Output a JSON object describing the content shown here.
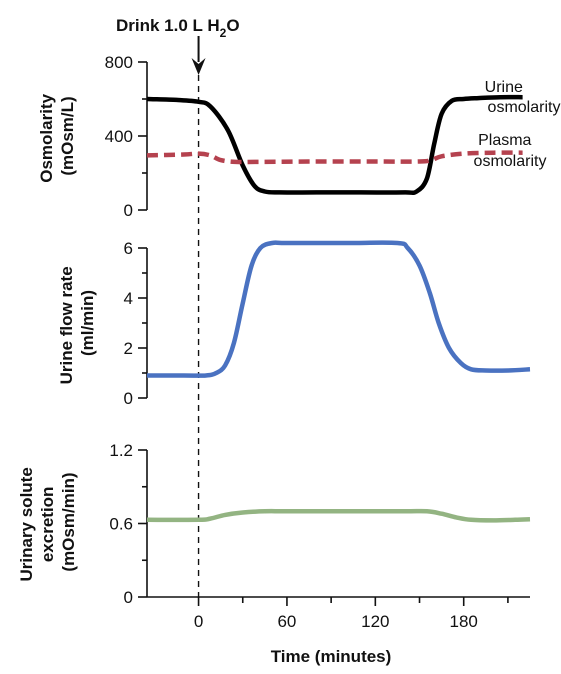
{
  "annotation": {
    "drink_label_main": "Drink 1.0 L H",
    "drink_label_sub": "2",
    "drink_label_end": "O",
    "event_x": 0
  },
  "x_axis": {
    "title": "Time (minutes)",
    "range": [
      -35,
      225
    ],
    "ticks": [
      0,
      60,
      120,
      180
    ],
    "minor_ticks": [
      30,
      90,
      150,
      210
    ]
  },
  "colors": {
    "urine_osmolarity": "#000000",
    "plasma_osmolarity": "#b5424f",
    "urine_flow": "#4a72c1",
    "solute_excretion": "#93b482",
    "axis": "#111111"
  },
  "chart_data": [
    {
      "type": "line",
      "panel": "osmolarity",
      "ylabel_line1": "Osmolarity",
      "ylabel_line2": "(mOsm/L)",
      "ylim": [
        0,
        800
      ],
      "yticks": [
        0,
        400,
        800
      ],
      "series": [
        {
          "name": "Urine osmolarity",
          "legend_line1": "Urine",
          "legend_line2": "osmolarity",
          "style": "solid",
          "x": [
            -35,
            -15,
            0,
            8,
            20,
            30,
            38,
            45,
            55,
            80,
            110,
            140,
            148,
            155,
            160,
            165,
            172,
            180,
            190,
            205,
            220
          ],
          "y": [
            600,
            595,
            585,
            560,
            430,
            240,
            130,
            100,
            95,
            95,
            95,
            95,
            100,
            170,
            360,
            520,
            590,
            600,
            605,
            610,
            610
          ]
        },
        {
          "name": "Plasma osmolarity",
          "legend_line1": "Plasma",
          "legend_line2": "osmolarity",
          "style": "dashed",
          "x": [
            -35,
            -10,
            0,
            8,
            15,
            25,
            40,
            80,
            120,
            150,
            158,
            165,
            180,
            200,
            220
          ],
          "y": [
            295,
            300,
            305,
            295,
            270,
            260,
            260,
            262,
            262,
            262,
            270,
            290,
            305,
            310,
            310
          ]
        }
      ]
    },
    {
      "type": "line",
      "panel": "urine_flow",
      "ylabel_line1": "Urine flow rate",
      "ylabel_line2": "(ml/min)",
      "ylim": [
        0,
        6
      ],
      "yticks": [
        0,
        2,
        4,
        6
      ],
      "series": [
        {
          "name": "Urine flow rate",
          "style": "solid",
          "x": [
            -35,
            -10,
            5,
            12,
            18,
            24,
            30,
            36,
            42,
            50,
            60,
            100,
            135,
            142,
            150,
            157,
            163,
            170,
            178,
            185,
            195,
            210,
            225
          ],
          "y": [
            0.9,
            0.9,
            0.9,
            1.0,
            1.3,
            2.2,
            3.8,
            5.3,
            6.0,
            6.2,
            6.2,
            6.2,
            6.2,
            6.0,
            5.3,
            4.2,
            3.0,
            2.0,
            1.4,
            1.15,
            1.1,
            1.1,
            1.15
          ]
        }
      ]
    },
    {
      "type": "line",
      "panel": "solute_excretion",
      "ylabel_line1": "Urinary solute",
      "ylabel_line2": "excretion",
      "ylabel_line3": "(mOsm/min)",
      "ylim": [
        0,
        1.2
      ],
      "yticks": [
        0,
        0.6,
        1.2
      ],
      "series": [
        {
          "name": "Urinary solute excretion",
          "style": "solid",
          "x": [
            -35,
            0,
            8,
            18,
            30,
            45,
            60,
            100,
            140,
            155,
            165,
            175,
            185,
            200,
            215,
            225
          ],
          "y": [
            0.63,
            0.63,
            0.64,
            0.67,
            0.69,
            0.7,
            0.7,
            0.7,
            0.7,
            0.7,
            0.68,
            0.65,
            0.63,
            0.625,
            0.63,
            0.635
          ]
        }
      ]
    }
  ]
}
